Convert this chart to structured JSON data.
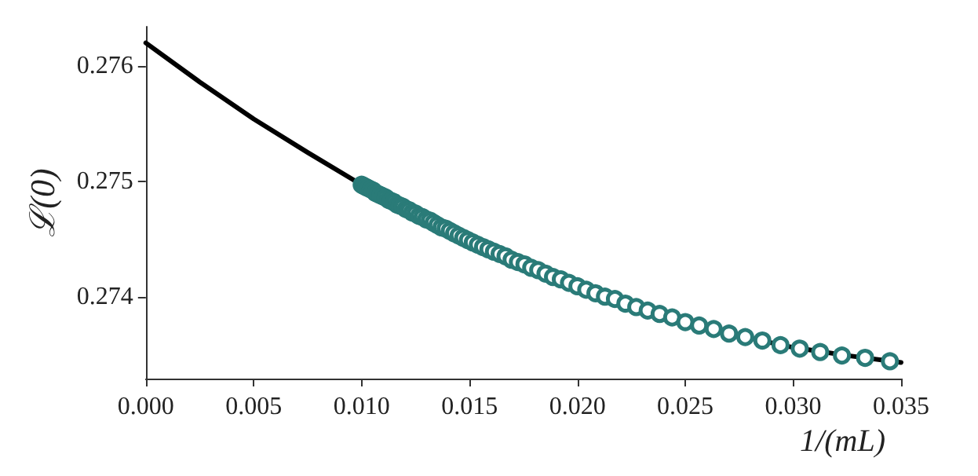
{
  "chart_data": {
    "type": "scatter",
    "xlabel": "1/(mL)",
    "ylabel": "ℒ(0)",
    "xlim": [
      0,
      0.035
    ],
    "ylim": [
      0.27329,
      0.27634
    ],
    "xticks": [
      {
        "value": 0,
        "label": "0.000"
      },
      {
        "value": 0.005,
        "label": "0.005"
      },
      {
        "value": 0.01,
        "label": "0.010"
      },
      {
        "value": 0.015,
        "label": "0.015"
      },
      {
        "value": 0.02,
        "label": "0.020"
      },
      {
        "value": 0.025,
        "label": "0.025"
      },
      {
        "value": 0.03,
        "label": "0.030"
      },
      {
        "value": 0.035,
        "label": "0.035"
      }
    ],
    "yticks": [
      0.274,
      0.275,
      0.276
    ],
    "grid": false,
    "series": [
      {
        "type": "line",
        "color": "#000000",
        "marker": "none",
        "line_style": "solid",
        "x": [
          0,
          0.0025,
          0.005,
          0.0075,
          0.01,
          0.0125,
          0.015,
          0.0175,
          0.02,
          0.0225,
          0.025,
          0.0275,
          0.03,
          0.0325,
          0.035
        ],
        "values": [
          0.2762,
          0.27586,
          0.27554,
          0.27525,
          0.27497,
          0.27472,
          0.27449,
          0.27428,
          0.27409,
          0.27393,
          0.27378,
          0.27366,
          0.27356,
          0.27349,
          0.27343
        ]
      },
      {
        "color": "#2a7b78",
        "marker": "circle",
        "x": [
          0.01,
          0.010101,
          0.010204,
          0.010309,
          0.010417,
          0.010526,
          0.010638,
          0.010753,
          0.01087,
          0.010989,
          0.011111,
          0.011236,
          0.011364,
          0.011494,
          0.011628,
          0.011765,
          0.011905,
          0.012048,
          0.012195,
          0.012346,
          0.0125,
          0.012658,
          0.012821,
          0.012987,
          0.013158,
          0.013333,
          0.013514,
          0.013699,
          0.013889,
          0.014085,
          0.014286,
          0.014493,
          0.014706,
          0.014925,
          0.015152,
          0.015385,
          0.015625,
          0.015873,
          0.016129,
          0.016393,
          0.016667,
          0.016949,
          0.017241,
          0.017544,
          0.017857,
          0.018182,
          0.018519,
          0.018868,
          0.019231,
          0.019608,
          0.02,
          0.020408,
          0.020833,
          0.021277,
          0.021739,
          0.022222,
          0.022727,
          0.023256,
          0.02381,
          0.02439,
          0.025,
          0.025641,
          0.026316,
          0.027027,
          0.027778,
          0.028571,
          0.029412,
          0.030303,
          0.03125,
          0.032258,
          0.033333,
          0.034483
        ],
        "values": [
          0.27497,
          0.27496,
          0.27495,
          0.27494,
          0.27493,
          0.27492,
          0.2749,
          0.27489,
          0.27488,
          0.27487,
          0.27486,
          0.27484,
          0.27483,
          0.27482,
          0.2748,
          0.27479,
          0.27478,
          0.27476,
          0.27475,
          0.27473,
          0.27472,
          0.2747,
          0.27469,
          0.27467,
          0.27466,
          0.27464,
          0.27462,
          0.2746,
          0.27459,
          0.27457,
          0.27455,
          0.27453,
          0.27451,
          0.27449,
          0.27447,
          0.27445,
          0.27443,
          0.27441,
          0.27439,
          0.27437,
          0.27435,
          0.27432,
          0.2743,
          0.27428,
          0.27425,
          0.27423,
          0.2742,
          0.27417,
          0.27415,
          0.27412,
          0.27409,
          0.27406,
          0.27403,
          0.274,
          0.27398,
          0.27394,
          0.27391,
          0.27388,
          0.27385,
          0.27382,
          0.27378,
          0.27375,
          0.27372,
          0.27368,
          0.27365,
          0.27362,
          0.27358,
          0.27355,
          0.27352,
          0.27349,
          0.27347,
          0.27344
        ]
      }
    ]
  }
}
